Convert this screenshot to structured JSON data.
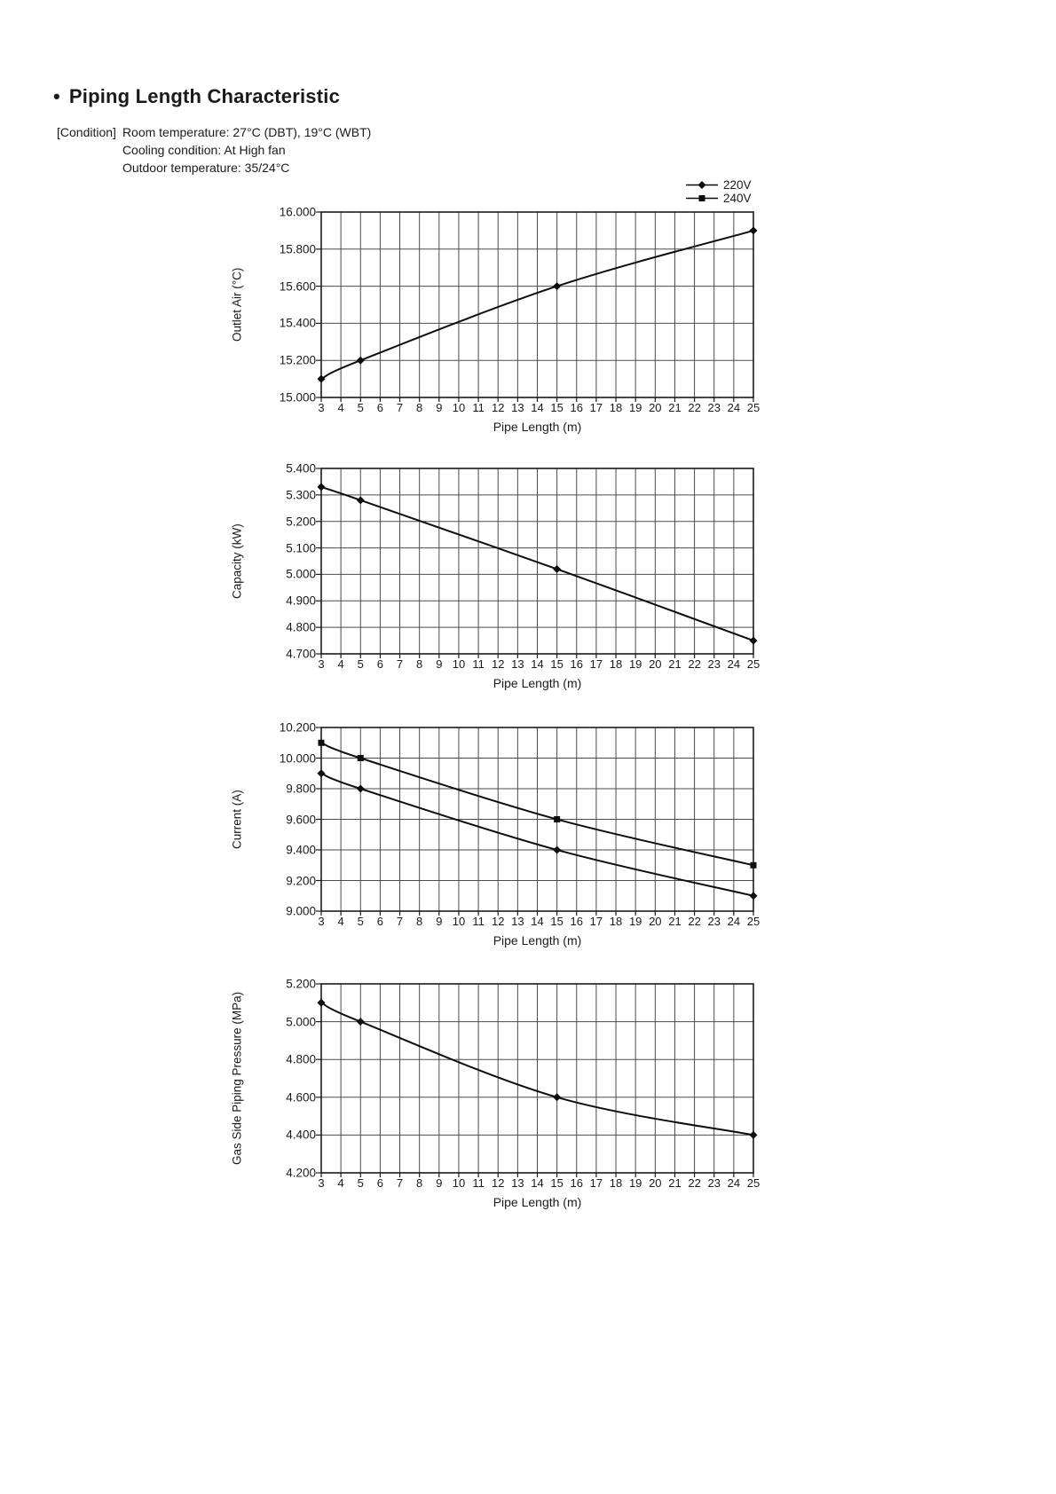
{
  "page": {
    "bullet": "•",
    "title": "Piping Length Characteristic"
  },
  "condition": {
    "prefix": "[Condition]",
    "lines": [
      "Room temperature: 27°C (DBT), 19°C (WBT)",
      "Cooling condition: At High fan",
      "Outdoor temperature: 35/24°C"
    ]
  },
  "legend": {
    "position": "top-right",
    "items": [
      {
        "label": "220V",
        "marker": "diamond"
      },
      {
        "label": "240V",
        "marker": "square"
      }
    ]
  },
  "colors": {
    "line": "#0d0d0d",
    "grid": "#4a4a4a",
    "border": "#1a1a1a",
    "text": "#1a1a1a"
  },
  "chart_data": [
    {
      "type": "line",
      "title": "",
      "ylabel": "Outlet Air (°C)",
      "xlabel": "Pipe Length (m)",
      "grid": true,
      "xlim": [
        3,
        25
      ],
      "xticks": [
        3,
        4,
        5,
        6,
        7,
        8,
        9,
        10,
        11,
        12,
        13,
        14,
        15,
        16,
        17,
        18,
        19,
        20,
        21,
        22,
        23,
        24,
        25
      ],
      "ylim": [
        15.0,
        16.0
      ],
      "yticks": [
        15.0,
        15.2,
        15.4,
        15.6,
        15.8,
        16.0
      ],
      "ytick_labels": [
        "15.000",
        "15.200",
        "15.400",
        "15.600",
        "15.800",
        "16.000"
      ],
      "series": [
        {
          "name": "220V",
          "marker": "diamond",
          "x": [
            3,
            5,
            15,
            25
          ],
          "y": [
            15.1,
            15.2,
            15.6,
            15.9
          ]
        }
      ]
    },
    {
      "type": "line",
      "title": "",
      "ylabel": "Capacity (kW)",
      "xlabel": "Pipe Length (m)",
      "grid": true,
      "xlim": [
        3,
        25
      ],
      "xticks": [
        3,
        4,
        5,
        6,
        7,
        8,
        9,
        10,
        11,
        12,
        13,
        14,
        15,
        16,
        17,
        18,
        19,
        20,
        21,
        22,
        23,
        24,
        25
      ],
      "ylim": [
        4.7,
        5.4
      ],
      "yticks": [
        4.7,
        4.8,
        4.9,
        5.0,
        5.1,
        5.2,
        5.3,
        5.4
      ],
      "ytick_labels": [
        "4.700",
        "4.800",
        "4.900",
        "5.000",
        "5.100",
        "5.200",
        "5.300",
        "5.400"
      ],
      "series": [
        {
          "name": "220V",
          "marker": "diamond",
          "x": [
            3,
            5,
            15,
            25
          ],
          "y": [
            5.33,
            5.28,
            5.02,
            4.75
          ]
        }
      ]
    },
    {
      "type": "line",
      "title": "",
      "ylabel": "Current (A)",
      "xlabel": "Pipe Length (m)",
      "grid": true,
      "xlim": [
        3,
        25
      ],
      "xticks": [
        3,
        4,
        5,
        6,
        7,
        8,
        9,
        10,
        11,
        12,
        13,
        14,
        15,
        16,
        17,
        18,
        19,
        20,
        21,
        22,
        23,
        24,
        25
      ],
      "ylim": [
        9.0,
        10.2
      ],
      "yticks": [
        9.0,
        9.2,
        9.4,
        9.6,
        9.8,
        10.0,
        10.2
      ],
      "ytick_labels": [
        "9.000",
        "9.200",
        "9.400",
        "9.600",
        "9.800",
        "10.000",
        "10.200"
      ],
      "series": [
        {
          "name": "240V",
          "marker": "square",
          "x": [
            3,
            5,
            15,
            25
          ],
          "y": [
            10.1,
            10.0,
            9.6,
            9.3
          ]
        },
        {
          "name": "220V",
          "marker": "diamond",
          "x": [
            3,
            5,
            15,
            25
          ],
          "y": [
            9.9,
            9.8,
            9.4,
            9.1
          ]
        }
      ]
    },
    {
      "type": "line",
      "title": "",
      "ylabel": "Gas Side Piping Pressure (MPa)",
      "xlabel": "Pipe Length (m)",
      "grid": true,
      "xlim": [
        3,
        25
      ],
      "xticks": [
        3,
        4,
        5,
        6,
        7,
        8,
        9,
        10,
        11,
        12,
        13,
        14,
        15,
        16,
        17,
        18,
        19,
        20,
        21,
        22,
        23,
        24,
        25
      ],
      "ylim": [
        4.2,
        5.2
      ],
      "yticks": [
        4.2,
        4.4,
        4.6,
        4.8,
        5.0,
        5.2
      ],
      "ytick_labels": [
        "4.200",
        "4.400",
        "4.600",
        "4.800",
        "5.000",
        "5.200"
      ],
      "series": [
        {
          "name": "220V",
          "marker": "diamond",
          "x": [
            3,
            5,
            15,
            25
          ],
          "y": [
            5.1,
            5.0,
            4.6,
            4.4
          ]
        }
      ]
    }
  ]
}
